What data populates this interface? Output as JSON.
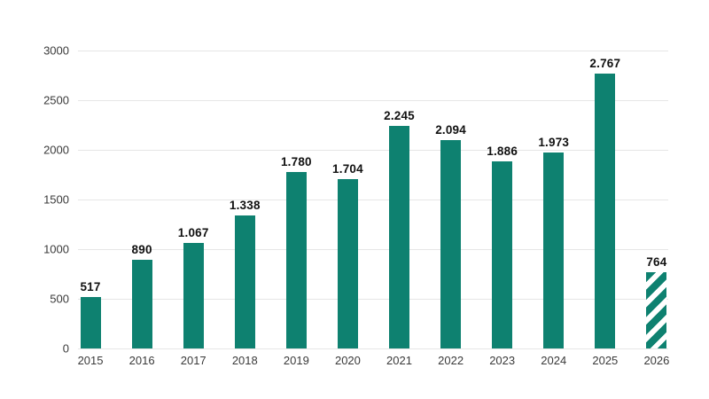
{
  "chart_data": {
    "type": "bar",
    "categories": [
      "2015",
      "2016",
      "2017",
      "2018",
      "2019",
      "2020",
      "2021",
      "2022",
      "2023",
      "2024",
      "2025",
      "2026"
    ],
    "values": [
      517,
      890,
      1067,
      1338,
      1780,
      1704,
      2245,
      2094,
      1886,
      1973,
      2767,
      764
    ],
    "value_labels": [
      "517",
      "890",
      "1.067",
      "1.338",
      "1.780",
      "1.704",
      "2.245",
      "2.094",
      "1.886",
      "1.973",
      "2.767",
      "764"
    ],
    "yticks": [
      0,
      500,
      1000,
      1500,
      2000,
      2500,
      3000
    ],
    "ytick_labels": [
      "0",
      "500",
      "1000",
      "1500",
      "2000",
      "2500",
      "3000"
    ],
    "ylim": [
      0,
      3000
    ],
    "grid": true,
    "legend_position": "none",
    "hatched_categories": [
      "2026"
    ]
  },
  "colors": {
    "bar": "#0e8170",
    "hatch_stripe_background": "#ffffff",
    "gridline": "#e6e6e6",
    "axis_text": "#3a3a3a",
    "value_label_text": "#111111",
    "background": "#ffffff"
  }
}
